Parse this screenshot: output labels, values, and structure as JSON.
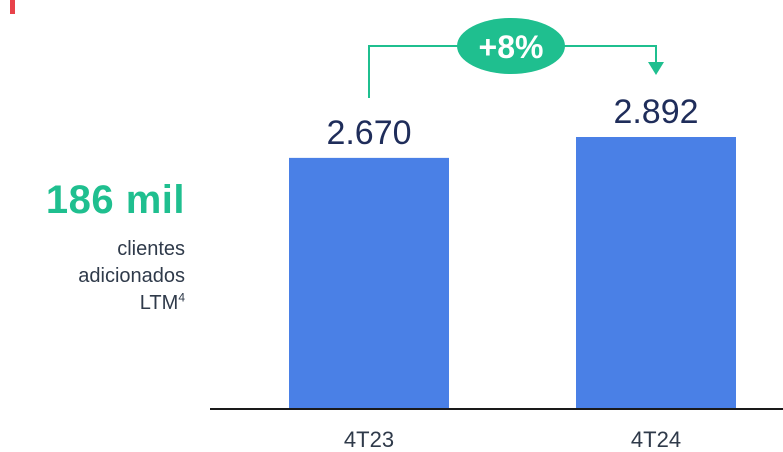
{
  "highlight": {
    "value": "186 mil",
    "desc_line1": "clientes",
    "desc_line2": "adicionados",
    "desc_line3": "LTM",
    "desc_sup": "4"
  },
  "colors": {
    "bar": "#4a80e6",
    "accent": "#1fbf8f",
    "value_text": "#1f2d5a",
    "axis": "#1a1a1a",
    "label_text": "#2f3a4a",
    "corner_mark": "#e8424a"
  },
  "chart_data": {
    "type": "bar",
    "categories": [
      "4T23",
      "4T24"
    ],
    "values": [
      2670,
      2892
    ],
    "value_labels": [
      "2.670",
      "2.892"
    ],
    "growth_label": "+8%",
    "title": "",
    "xlabel": "",
    "ylabel": "",
    "ylim": [
      0,
      2892
    ]
  }
}
